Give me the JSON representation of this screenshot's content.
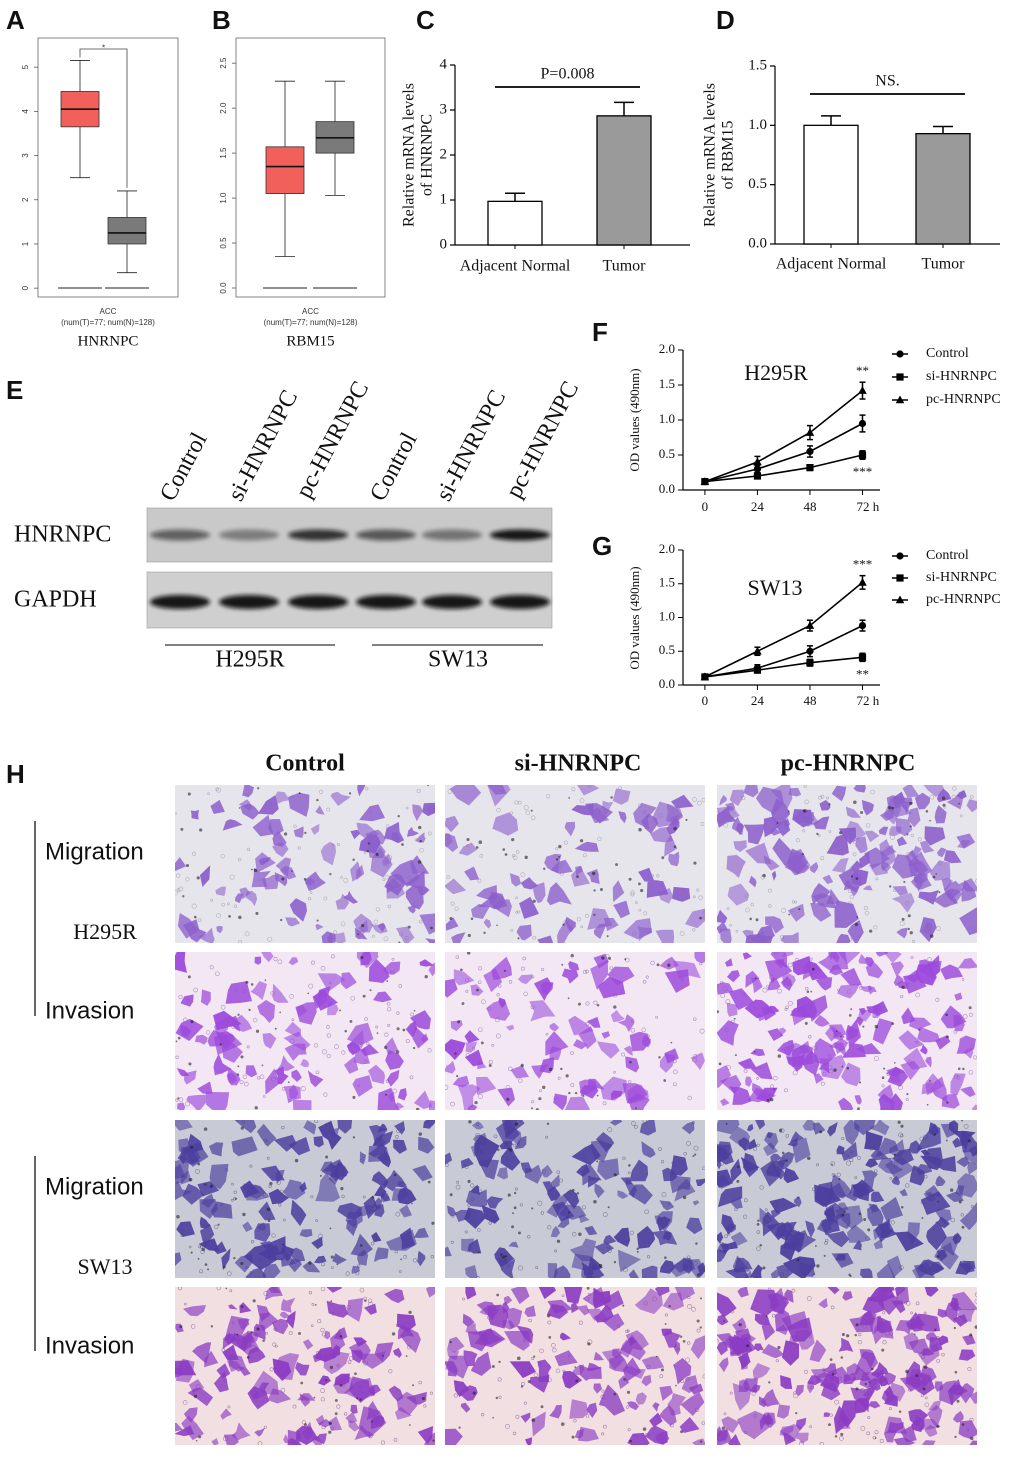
{
  "panel_letters": [
    "A",
    "B",
    "C",
    "D",
    "E",
    "F",
    "G",
    "H"
  ],
  "chart_data": [
    {
      "type": "box",
      "title": "HNRNPC",
      "xlabel": "ACC",
      "note": "(num(T)=77; num(N)=128)",
      "ylim": [
        -0.2,
        5.66
      ],
      "yticks": [
        0,
        1,
        2,
        3,
        4,
        5
      ],
      "boxes": [
        {
          "color": "#f2605c",
          "whislo": 2.5,
          "q1": 3.65,
          "med": 4.05,
          "q3": 4.45,
          "whishi": 5.15
        },
        {
          "color": "#7a7a7a",
          "whislo": 0.35,
          "q1": 1.0,
          "med": 1.25,
          "q3": 1.6,
          "whishi": 2.2
        }
      ],
      "annotation": {
        "text": "*",
        "color": "#e03030"
      }
    },
    {
      "type": "box",
      "title": "RBM15",
      "xlabel": "ACC",
      "note": "(num(T)=77; num(N)=128)",
      "ylim": [
        -0.1,
        2.78
      ],
      "yticks": [
        {
          "value": 0,
          "label": "0.0"
        },
        0.5,
        {
          "value": 1,
          "label": "1.0"
        },
        1.5,
        {
          "value": 2,
          "label": "2.0"
        },
        2.5
      ],
      "boxes": [
        {
          "color": "#f2605c",
          "whislo": 0.35,
          "q1": 1.05,
          "med": 1.35,
          "q3": 1.57,
          "whishi": 2.3
        },
        {
          "color": "#7a7a7a",
          "whislo": 1.03,
          "q1": 1.5,
          "med": 1.67,
          "q3": 1.85,
          "whishi": 2.3
        }
      ]
    },
    {
      "type": "bar",
      "ylabel": [
        "Relative mRNA levels",
        "of HNRNPC"
      ],
      "categories": [
        "Adjacent Normal",
        "Tumor"
      ],
      "values": [
        0.97,
        2.87
      ],
      "errors": [
        0.18,
        0.3
      ],
      "colors": [
        "#ffffff",
        "#9a9a9a"
      ],
      "ylim": [
        0,
        4
      ],
      "yticks": [
        0,
        1,
        2,
        3,
        4
      ],
      "annotation": "P=0.008"
    },
    {
      "type": "bar",
      "ylabel": [
        "Relative mRNA levels",
        "of RBM15"
      ],
      "categories": [
        "Adjacent Normal",
        "Tumor"
      ],
      "values": [
        1.0,
        0.93
      ],
      "errors": [
        0.08,
        0.06
      ],
      "colors": [
        "#ffffff",
        "#9a9a9a"
      ],
      "ylim": [
        0,
        1.5
      ],
      "yticks": [
        {
          "value": 0,
          "label": "0.0"
        },
        0.5,
        {
          "value": 1,
          "label": "1.0"
        },
        1.5
      ],
      "annotation": "NS."
    },
    {
      "type": "line",
      "title": "H295R",
      "ylabel": "OD values (490nm)",
      "x": [
        0,
        24,
        48,
        72
      ],
      "xlim": [
        -10,
        80
      ],
      "xticks": [
        0,
        24,
        48,
        {
          "value": 72,
          "label": "72 h"
        }
      ],
      "ylim": [
        0,
        2
      ],
      "yticks": [
        {
          "value": 0,
          "label": "0.0"
        },
        0.5,
        {
          "value": 1,
          "label": "1.0"
        },
        1.5,
        {
          "value": 2,
          "label": "2.0"
        }
      ],
      "series": [
        {
          "name": "Control",
          "marker": "circle",
          "color": "#000000",
          "values": [
            0.12,
            0.3,
            0.55,
            0.95
          ],
          "errors": [
            0.03,
            0.05,
            0.08,
            0.12
          ]
        },
        {
          "name": "si-HNRNPC",
          "marker": "square",
          "color": "#000000",
          "values": [
            0.12,
            0.2,
            0.32,
            0.5
          ],
          "errors": [
            0.02,
            0.04,
            0.04,
            0.06
          ]
        },
        {
          "name": "pc-HNRNPC",
          "marker": "triangle",
          "color": "#000000",
          "values": [
            0.12,
            0.4,
            0.82,
            1.42
          ],
          "errors": [
            0.03,
            0.08,
            0.1,
            0.12
          ]
        }
      ],
      "annotations": [
        "**",
        "***"
      ]
    },
    {
      "type": "line",
      "title": "SW13",
      "ylabel": "OD values (490nm)",
      "x": [
        0,
        24,
        48,
        72
      ],
      "xlim": [
        -10,
        80
      ],
      "xticks": [
        0,
        24,
        48,
        {
          "value": 72,
          "label": "72 h"
        }
      ],
      "ylim": [
        0,
        2
      ],
      "yticks": [
        {
          "value": 0,
          "label": "0.0"
        },
        0.5,
        {
          "value": 1,
          "label": "1.0"
        },
        1.5,
        {
          "value": 2,
          "label": "2.0"
        }
      ],
      "series": [
        {
          "name": "Control",
          "marker": "circle",
          "color": "#000000",
          "values": [
            0.12,
            0.25,
            0.5,
            0.88
          ],
          "errors": [
            0.02,
            0.05,
            0.08,
            0.08
          ]
        },
        {
          "name": "si-HNRNPC",
          "marker": "square",
          "color": "#000000",
          "values": [
            0.12,
            0.22,
            0.33,
            0.41
          ],
          "errors": [
            0.02,
            0.04,
            0.05,
            0.06
          ]
        },
        {
          "name": "pc-HNRNPC",
          "marker": "triangle",
          "color": "#000000",
          "values": [
            0.12,
            0.5,
            0.88,
            1.52
          ],
          "errors": [
            0.03,
            0.06,
            0.08,
            0.1
          ]
        }
      ],
      "annotations": [
        "***",
        "**"
      ]
    }
  ],
  "blot": {
    "lanes": [
      "Control",
      "si-HNRNPC",
      "pc-HNRNPC",
      "Control",
      "si-HNRNPC",
      "pc-HNRNPC"
    ],
    "rows": [
      "HNRNPC",
      "GAPDH"
    ],
    "groups": [
      "H295R",
      "SW13"
    ]
  },
  "transwell": {
    "columns": [
      "Control",
      "si-HNRNPC",
      "pc-HNRNPC"
    ],
    "groups": [
      {
        "name": "H295R",
        "rows": [
          "Migration",
          "Invasion"
        ]
      },
      {
        "name": "SW13",
        "rows": [
          "Migration",
          "Invasion"
        ]
      }
    ]
  }
}
